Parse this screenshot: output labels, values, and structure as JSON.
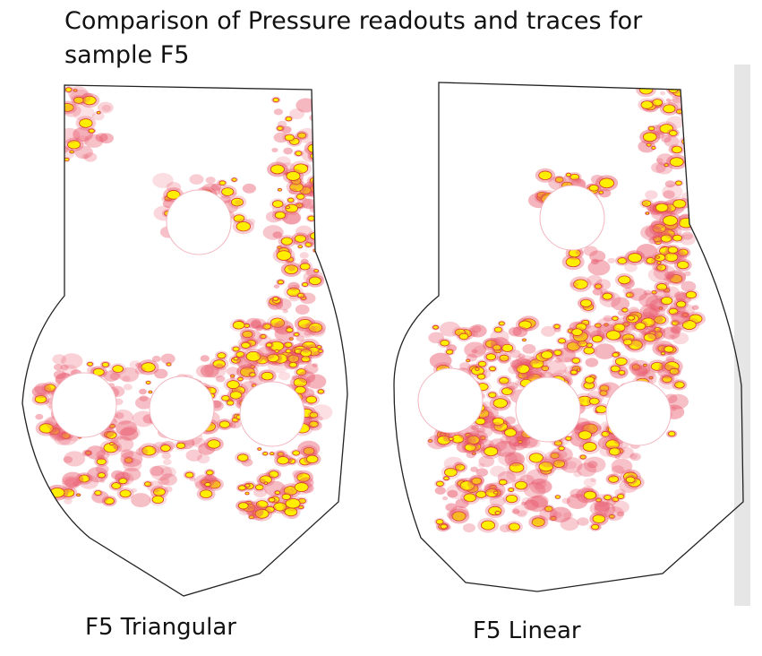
{
  "header": {
    "title_lines": [
      "Comparison of Pressure readouts and traces for",
      "sample F5"
    ]
  },
  "panels": [
    {
      "caption": "F5 Triangular"
    },
    {
      "caption": "F5 Linear"
    }
  ]
}
